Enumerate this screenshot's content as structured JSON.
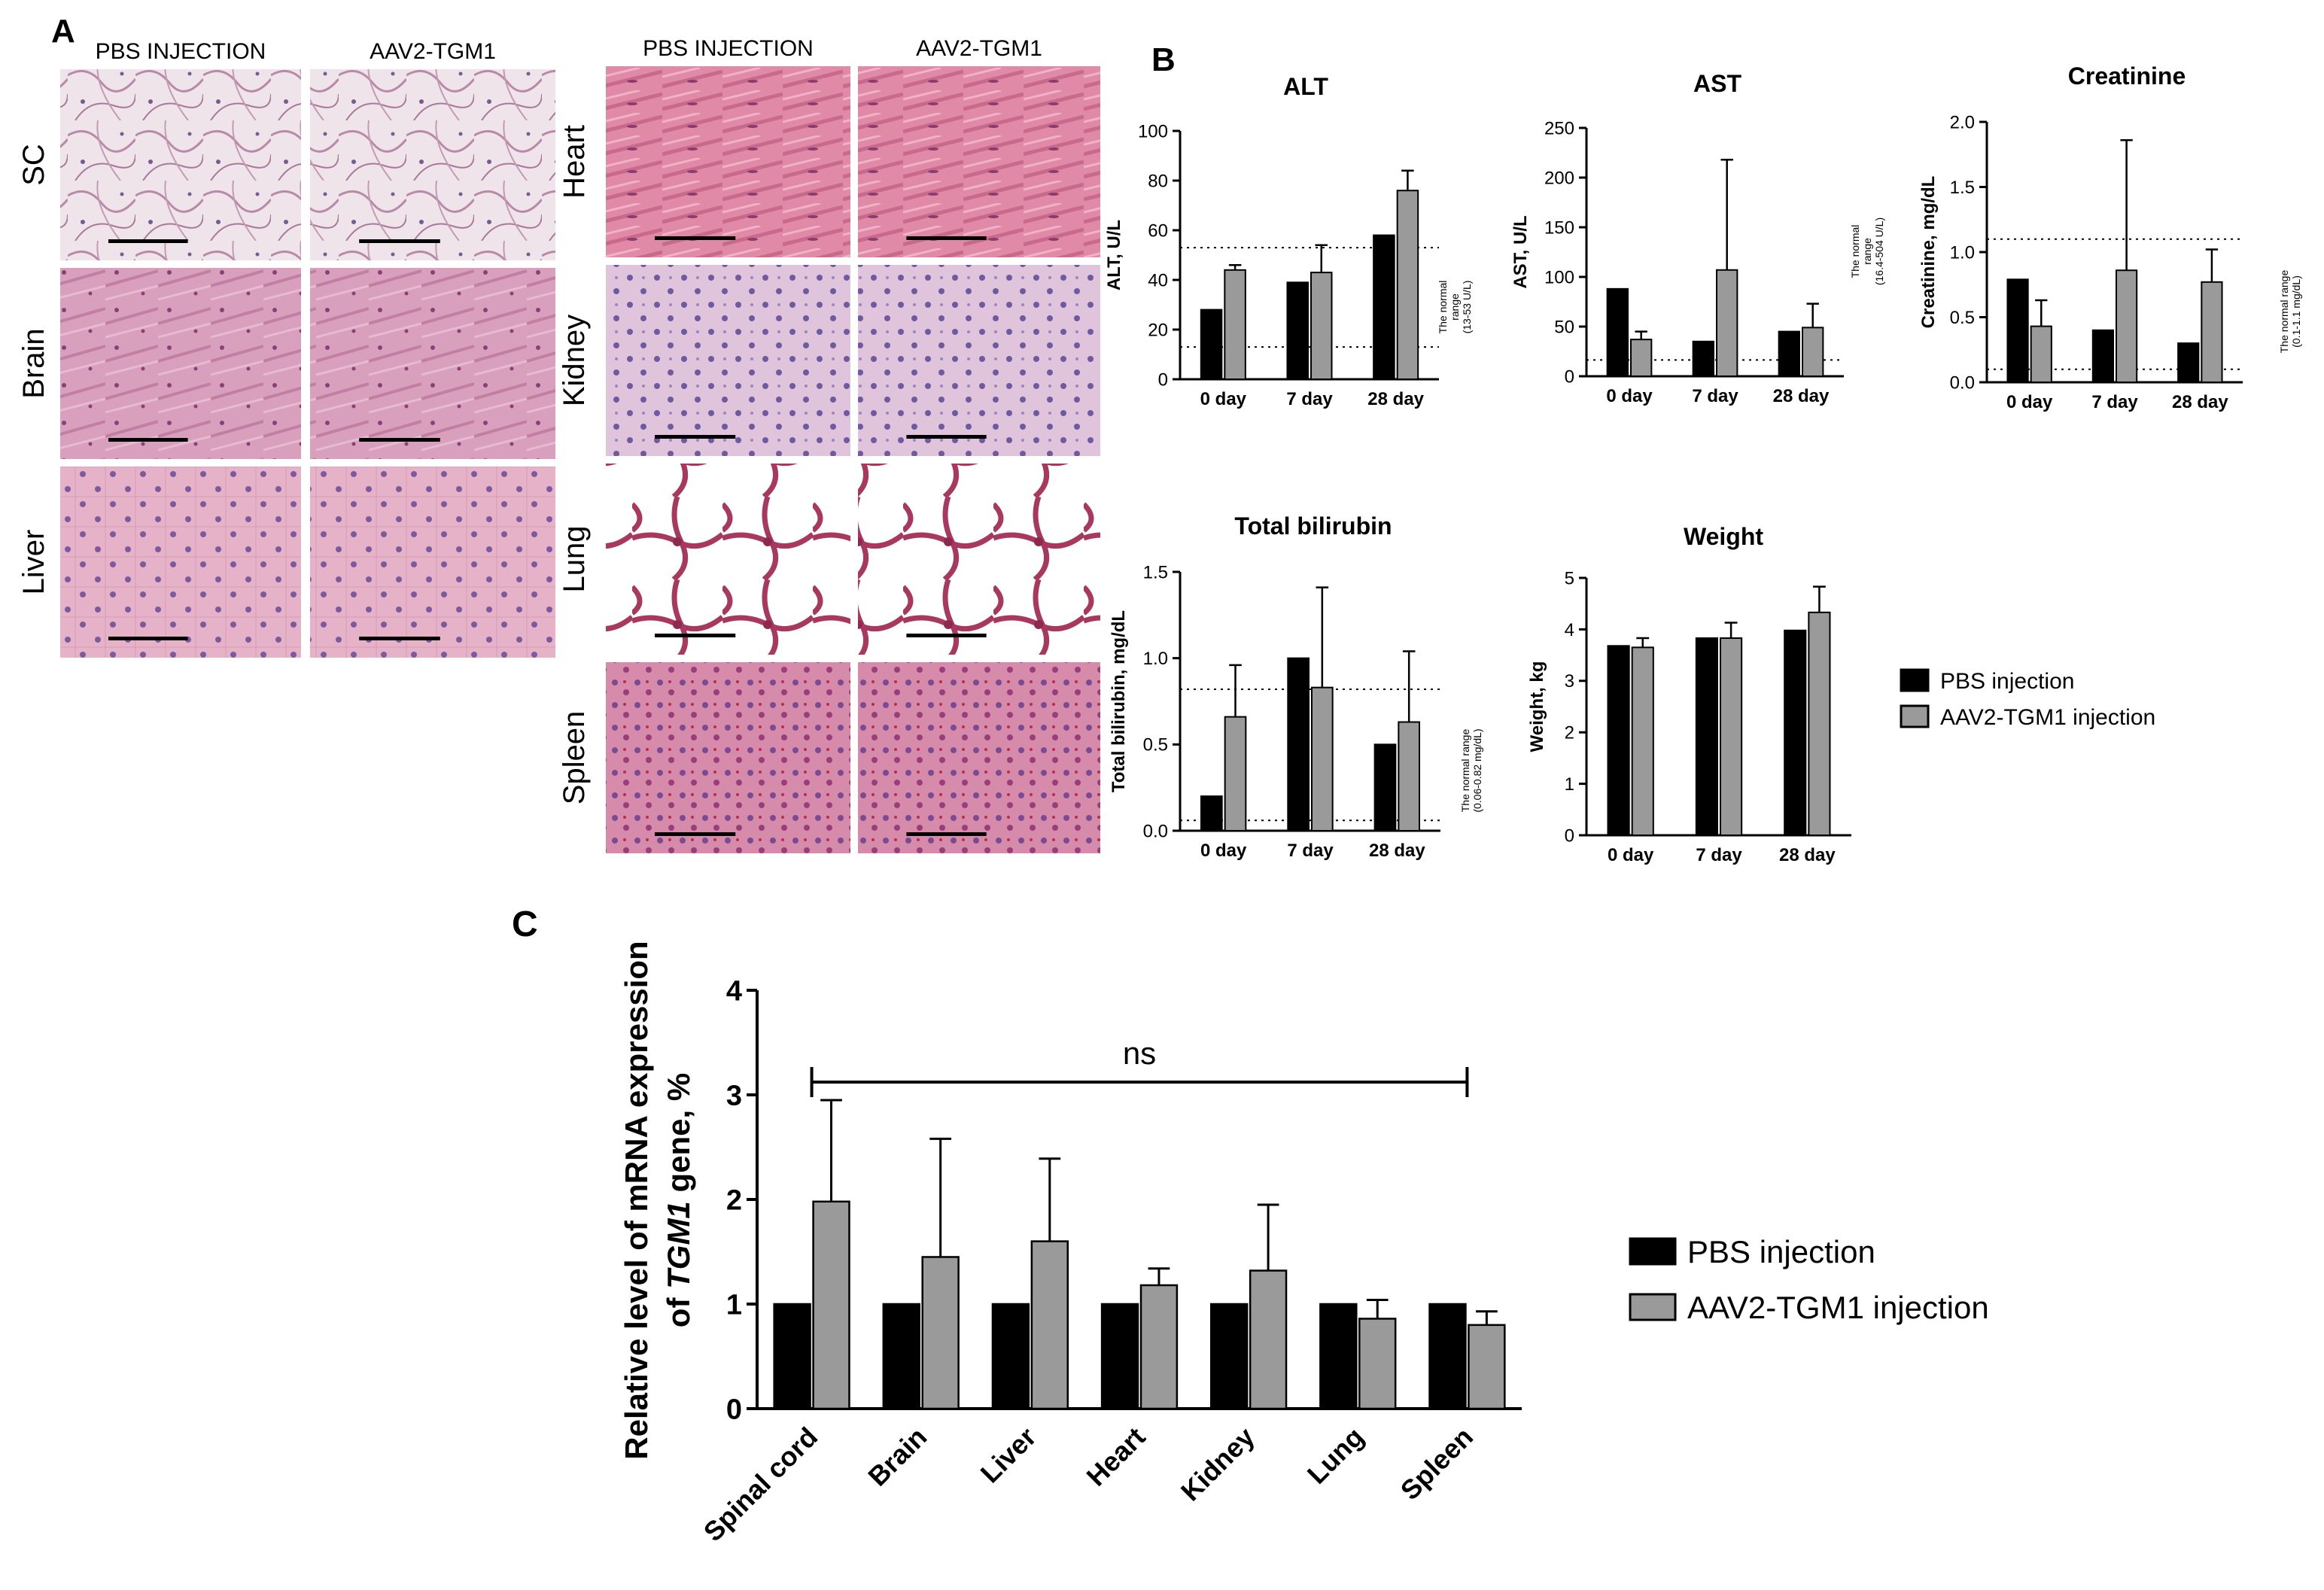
{
  "panel_labels": {
    "a": "A",
    "b": "B",
    "c": "C"
  },
  "histology": {
    "col_headers": [
      "PBS INJECTION",
      "AAV2-TGM1"
    ],
    "left_rows": [
      {
        "label": "SC",
        "type": "sc"
      },
      {
        "label": "Brain",
        "type": "brain"
      },
      {
        "label": "Liver",
        "type": "liver"
      }
    ],
    "right_rows": [
      {
        "label": "Heart",
        "type": "heart"
      },
      {
        "label": "Kidney",
        "type": "kidney"
      },
      {
        "label": "Lung",
        "type": "lung"
      },
      {
        "label": "Spleen",
        "type": "spleen"
      }
    ]
  },
  "legend": {
    "items": [
      "PBS injection",
      "AAV2-TGM1 injection"
    ]
  },
  "colors": {
    "pbs": "#000000",
    "aav": "#9a9a9a",
    "he_pink": "#e4a9c2",
    "he_nuclei": "#6a4a9c"
  },
  "chart_data": [
    {
      "type": "bar",
      "title": "ALT",
      "ylabel": "ALT, U/L",
      "categories": [
        "0 day",
        "7 day",
        "28 day"
      ],
      "ylim": [
        0,
        100
      ],
      "yticks": [
        "0",
        "20",
        "40",
        "60",
        "80",
        "100"
      ],
      "series": [
        {
          "name": "PBS injection",
          "values": [
            28,
            39,
            58
          ]
        },
        {
          "name": "AAV2-TGM1 injection",
          "values": [
            44,
            43,
            76
          ],
          "error": [
            2,
            11,
            8
          ]
        }
      ],
      "reference_lines": [
        13,
        53
      ],
      "range_note": [
        "The normal",
        "range",
        "(13-53 U/L)"
      ]
    },
    {
      "type": "bar",
      "title": "AST",
      "ylabel": "AST, U/L",
      "categories": [
        "0 day",
        "7 day",
        "28 day"
      ],
      "ylim": [
        0,
        250
      ],
      "yticks": [
        "0",
        "50",
        "100",
        "150",
        "200",
        "250"
      ],
      "series": [
        {
          "name": "PBS injection",
          "values": [
            88,
            35,
            45
          ]
        },
        {
          "name": "AAV2-TGM1 injection",
          "values": [
            37,
            107,
            49
          ],
          "error": [
            8,
            111,
            24
          ]
        }
      ],
      "reference_lines": [
        16.4
      ],
      "range_note": [
        "The normal",
        "range",
        "(16.4-504 U/L)"
      ]
    },
    {
      "type": "bar",
      "title": "Creatinine",
      "ylabel": "Creatinine, mg/dL",
      "categories": [
        "0 day",
        "7 day",
        "28 day"
      ],
      "ylim": [
        0,
        2.0
      ],
      "yticks": [
        "0.0",
        "0.5",
        "1.0",
        "1.5",
        "2.0"
      ],
      "series": [
        {
          "name": "PBS injection",
          "values": [
            0.79,
            0.4,
            0.3
          ]
        },
        {
          "name": "AAV2-TGM1 injection",
          "values": [
            0.43,
            0.86,
            0.77
          ],
          "error": [
            0.2,
            1.0,
            0.25
          ]
        }
      ],
      "reference_lines": [
        0.1,
        1.1
      ],
      "range_note": [
        "The normal range",
        "(0.1-1.1 mg/dL)"
      ]
    },
    {
      "type": "bar",
      "title": "Total bilirubin",
      "ylabel": "Total bilirubin, mg/dL",
      "categories": [
        "0 day",
        "7 day",
        "28 day"
      ],
      "ylim": [
        0,
        1.5
      ],
      "yticks": [
        "0.0",
        "0.5",
        "1.0",
        "1.5"
      ],
      "series": [
        {
          "name": "PBS injection",
          "values": [
            0.2,
            1.0,
            0.5
          ]
        },
        {
          "name": "AAV2-TGM1 injection",
          "values": [
            0.66,
            0.83,
            0.63
          ],
          "error": [
            0.3,
            0.58,
            0.41
          ]
        }
      ],
      "reference_lines": [
        0.06,
        0.82
      ],
      "range_note": [
        "The normal range",
        "(0.06-0.82 mg/dL)"
      ]
    },
    {
      "type": "bar",
      "title": "Weight",
      "ylabel": "Weight, kg",
      "categories": [
        "0 day",
        "7 day",
        "28 day"
      ],
      "ylim": [
        0,
        5
      ],
      "yticks": [
        "0",
        "1",
        "2",
        "3",
        "4",
        "5"
      ],
      "series": [
        {
          "name": "PBS injection",
          "values": [
            3.68,
            3.83,
            3.98
          ]
        },
        {
          "name": "AAV2-TGM1 injection",
          "values": [
            3.65,
            3.83,
            4.33
          ],
          "error": [
            0.18,
            0.3,
            0.5
          ]
        }
      ],
      "reference_lines": []
    },
    {
      "type": "bar",
      "title": "",
      "ylabel": [
        "Relative level of mRNA expression",
        "of ",
        "TGM1",
        " gene, %"
      ],
      "categories": [
        "Spinal cord",
        "Brain",
        "Liver",
        "Heart",
        "Kidney",
        "Lung",
        "Spleen"
      ],
      "ylim": [
        0,
        4
      ],
      "yticks": [
        "0",
        "1",
        "2",
        "3",
        "4"
      ],
      "series": [
        {
          "name": "PBS injection",
          "values": [
            1,
            1,
            1,
            1,
            1,
            1,
            1
          ]
        },
        {
          "name": "AAV2-TGM1 injection",
          "values": [
            1.98,
            1.45,
            1.6,
            1.18,
            1.32,
            0.86,
            0.8
          ],
          "error": [
            0.97,
            1.13,
            0.79,
            0.16,
            0.63,
            0.18,
            0.13
          ]
        }
      ],
      "annotation": "ns"
    }
  ]
}
